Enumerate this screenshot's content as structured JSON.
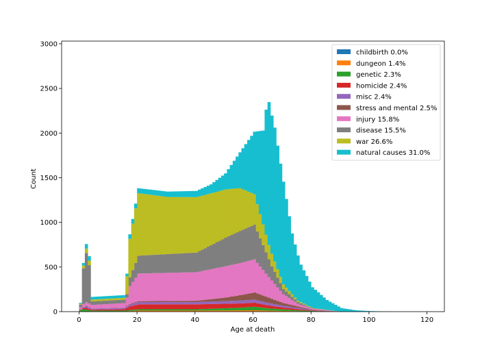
{
  "chart_data": {
    "type": "bar",
    "stacked": true,
    "xlabel": "Age at death",
    "ylabel": "Count",
    "xlim": [
      -6,
      126
    ],
    "ylim": [
      0,
      3030
    ],
    "xticks": [
      0,
      20,
      40,
      60,
      80,
      100,
      120
    ],
    "yticks": [
      0,
      500,
      1000,
      1500,
      2000,
      2500,
      3000
    ],
    "bin_width": 1,
    "legend_position": "top-right",
    "series": [
      {
        "name": "childbirth 0.0%",
        "color": "#1f77b4",
        "anchors": [
          [
            0,
            0
          ],
          [
            120,
            0
          ]
        ]
      },
      {
        "name": "dungeon 1.4%",
        "color": "#ff7f0e",
        "anchors": [
          [
            0,
            2
          ],
          [
            15,
            2
          ],
          [
            20,
            12
          ],
          [
            40,
            12
          ],
          [
            60,
            15
          ],
          [
            70,
            8
          ],
          [
            80,
            2
          ],
          [
            90,
            0
          ],
          [
            120,
            0
          ]
        ]
      },
      {
        "name": "genetic 2.3%",
        "color": "#2ca02c",
        "anchors": [
          [
            0,
            15
          ],
          [
            1,
            25
          ],
          [
            2,
            20
          ],
          [
            4,
            10
          ],
          [
            15,
            10
          ],
          [
            20,
            15
          ],
          [
            40,
            15
          ],
          [
            55,
            30
          ],
          [
            60,
            40
          ],
          [
            65,
            25
          ],
          [
            75,
            10
          ],
          [
            85,
            2
          ],
          [
            90,
            0
          ],
          [
            120,
            0
          ]
        ]
      },
      {
        "name": "homicide 2.4%",
        "color": "#d62728",
        "anchors": [
          [
            0,
            5
          ],
          [
            2,
            20
          ],
          [
            4,
            10
          ],
          [
            15,
            15
          ],
          [
            17,
            40
          ],
          [
            20,
            55
          ],
          [
            40,
            55
          ],
          [
            60,
            45
          ],
          [
            70,
            20
          ],
          [
            80,
            5
          ],
          [
            90,
            0
          ],
          [
            120,
            0
          ]
        ]
      },
      {
        "name": "misc 2.4%",
        "color": "#9467bd",
        "anchors": [
          [
            0,
            5
          ],
          [
            2,
            20
          ],
          [
            4,
            10
          ],
          [
            15,
            15
          ],
          [
            17,
            20
          ],
          [
            20,
            25
          ],
          [
            40,
            25
          ],
          [
            60,
            35
          ],
          [
            70,
            20
          ],
          [
            80,
            5
          ],
          [
            90,
            0
          ],
          [
            120,
            0
          ]
        ]
      },
      {
        "name": "stress and mental 2.5%",
        "color": "#8c564b",
        "anchors": [
          [
            0,
            2
          ],
          [
            2,
            5
          ],
          [
            4,
            3
          ],
          [
            15,
            3
          ],
          [
            17,
            8
          ],
          [
            20,
            10
          ],
          [
            40,
            15
          ],
          [
            50,
            40
          ],
          [
            60,
            80
          ],
          [
            65,
            60
          ],
          [
            70,
            30
          ],
          [
            80,
            5
          ],
          [
            90,
            0
          ],
          [
            120,
            0
          ]
        ]
      },
      {
        "name": "injury 15.8%",
        "color": "#e377c2",
        "anchors": [
          [
            0,
            20
          ],
          [
            2,
            40
          ],
          [
            4,
            40
          ],
          [
            15,
            50
          ],
          [
            16,
            90
          ],
          [
            17,
            200
          ],
          [
            20,
            310
          ],
          [
            40,
            320
          ],
          [
            50,
            350
          ],
          [
            60,
            370
          ],
          [
            65,
            230
          ],
          [
            70,
            100
          ],
          [
            75,
            30
          ],
          [
            80,
            10
          ],
          [
            90,
            0
          ],
          [
            120,
            0
          ]
        ]
      },
      {
        "name": "disease 15.5%",
        "color": "#7f7f7f",
        "anchors": [
          [
            0,
            30
          ],
          [
            1,
            400
          ],
          [
            2,
            550
          ],
          [
            3,
            430
          ],
          [
            4,
            40
          ],
          [
            15,
            40
          ],
          [
            16,
            40
          ],
          [
            17,
            100
          ],
          [
            20,
            200
          ],
          [
            40,
            220
          ],
          [
            50,
            320
          ],
          [
            55,
            360
          ],
          [
            60,
            390
          ],
          [
            63,
            280
          ],
          [
            66,
            160
          ],
          [
            70,
            60
          ],
          [
            75,
            20
          ],
          [
            80,
            5
          ],
          [
            90,
            0
          ],
          [
            120,
            0
          ]
        ]
      },
      {
        "name": "war 26.6%",
        "color": "#bcbd22",
        "anchors": [
          [
            0,
            10
          ],
          [
            2,
            50
          ],
          [
            3,
            50
          ],
          [
            4,
            20
          ],
          [
            15,
            20
          ],
          [
            16,
            200
          ],
          [
            17,
            430
          ],
          [
            20,
            700
          ],
          [
            30,
            640
          ],
          [
            40,
            620
          ],
          [
            50,
            540
          ],
          [
            55,
            480
          ],
          [
            60,
            340
          ],
          [
            65,
            160
          ],
          [
            70,
            50
          ],
          [
            75,
            15
          ],
          [
            80,
            5
          ],
          [
            90,
            0
          ],
          [
            120,
            0
          ]
        ]
      },
      {
        "name": "natural causes 31.0%",
        "color": "#17becf",
        "anchors": [
          [
            0,
            10
          ],
          [
            2,
            50
          ],
          [
            3,
            50
          ],
          [
            4,
            30
          ],
          [
            15,
            30
          ],
          [
            16,
            30
          ],
          [
            17,
            50
          ],
          [
            20,
            55
          ],
          [
            30,
            60
          ],
          [
            40,
            70
          ],
          [
            45,
            100
          ],
          [
            50,
            180
          ],
          [
            55,
            400
          ],
          [
            60,
            700
          ],
          [
            63,
            1050
          ],
          [
            64,
            1400
          ],
          [
            65,
            1600
          ],
          [
            67,
            1500
          ],
          [
            70,
            1150
          ],
          [
            73,
            680
          ],
          [
            76,
            420
          ],
          [
            80,
            230
          ],
          [
            85,
            110
          ],
          [
            90,
            40
          ],
          [
            95,
            15
          ],
          [
            100,
            6
          ],
          [
            105,
            2
          ],
          [
            110,
            0
          ],
          [
            120,
            0
          ]
        ]
      }
    ]
  }
}
